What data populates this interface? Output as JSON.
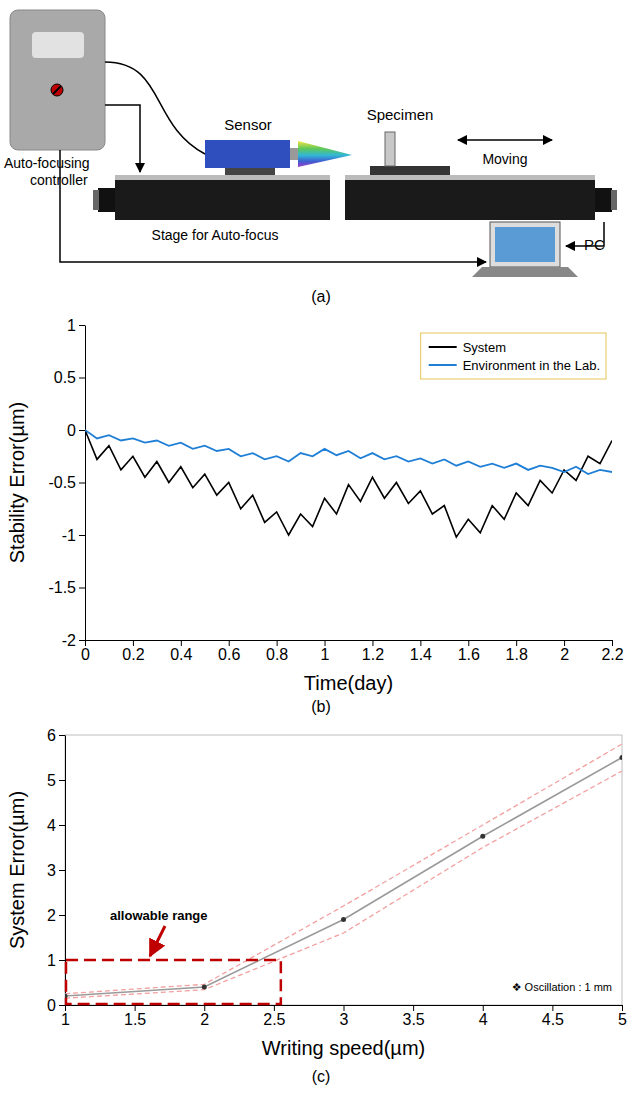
{
  "diagram": {
    "panel_label": "(a)",
    "controller": "Auto-focusing controller",
    "sensor": "Sensor",
    "specimen": "Specimen",
    "moving": "Moving",
    "stage": "Stage for Auto-focus",
    "pc": "PC"
  },
  "chart_data": [
    {
      "type": "line",
      "panel_label": "(b)",
      "x_label": "Time(day)",
      "y_label": "Stability Error(µm)",
      "x": [
        0,
        0.05,
        0.1,
        0.15,
        0.2,
        0.25,
        0.3,
        0.35,
        0.4,
        0.45,
        0.5,
        0.55,
        0.6,
        0.65,
        0.7,
        0.75,
        0.8,
        0.85,
        0.9,
        0.95,
        1,
        1.05,
        1.1,
        1.15,
        1.2,
        1.25,
        1.3,
        1.35,
        1.4,
        1.45,
        1.5,
        1.55,
        1.6,
        1.65,
        1.7,
        1.75,
        1.8,
        1.85,
        1.9,
        1.95,
        2,
        2.05,
        2.1,
        2.15,
        2.2
      ],
      "xlim": [
        0,
        2.2
      ],
      "xticks": [
        0,
        0.2,
        0.4,
        0.6,
        0.8,
        1,
        1.2,
        1.4,
        1.6,
        1.8,
        2,
        2.2
      ],
      "ylim": [
        -2,
        1
      ],
      "yticks": [
        -2,
        -1.5,
        -1,
        -0.5,
        0,
        0.5,
        1
      ],
      "grid": false,
      "legend": "upper right",
      "series": [
        {
          "name": "System",
          "color": "#000000",
          "values": [
            0,
            -0.28,
            -0.15,
            -0.38,
            -0.25,
            -0.45,
            -0.3,
            -0.5,
            -0.35,
            -0.55,
            -0.42,
            -0.62,
            -0.5,
            -0.75,
            -0.62,
            -0.88,
            -0.78,
            -1.0,
            -0.8,
            -0.92,
            -0.65,
            -0.8,
            -0.52,
            -0.68,
            -0.45,
            -0.65,
            -0.5,
            -0.7,
            -0.58,
            -0.8,
            -0.72,
            -1.02,
            -0.85,
            -0.98,
            -0.72,
            -0.85,
            -0.6,
            -0.72,
            -0.48,
            -0.6,
            -0.38,
            -0.48,
            -0.25,
            -0.32,
            -0.1
          ]
        },
        {
          "name": "Environment in the Lab.",
          "color": "#1f7fd6",
          "values": [
            0,
            -0.08,
            -0.05,
            -0.1,
            -0.08,
            -0.12,
            -0.1,
            -0.15,
            -0.12,
            -0.18,
            -0.15,
            -0.2,
            -0.18,
            -0.25,
            -0.22,
            -0.28,
            -0.25,
            -0.3,
            -0.22,
            -0.25,
            -0.18,
            -0.24,
            -0.2,
            -0.27,
            -0.22,
            -0.28,
            -0.25,
            -0.3,
            -0.27,
            -0.32,
            -0.28,
            -0.34,
            -0.3,
            -0.35,
            -0.32,
            -0.36,
            -0.32,
            -0.38,
            -0.34,
            -0.36,
            -0.4,
            -0.35,
            -0.42,
            -0.38,
            -0.4
          ]
        }
      ]
    },
    {
      "type": "line",
      "panel_label": "(c)",
      "x_label": "Writing speed(µm)",
      "y_label": "System Error(µm)",
      "x": [
        1,
        2,
        3,
        4,
        5
      ],
      "values": [
        0.2,
        0.4,
        1.9,
        3.75,
        5.5
      ],
      "error": [
        0.05,
        0.06,
        0.3,
        0.25,
        0.3
      ],
      "color": "#9a9a9a",
      "marker": "circle",
      "xlim": [
        1,
        5
      ],
      "xticks": [
        1,
        1.5,
        2,
        2.5,
        3,
        3.5,
        4,
        4.5,
        5
      ],
      "ylim": [
        0,
        6
      ],
      "yticks": [
        0,
        1,
        2,
        3,
        4,
        5,
        6
      ],
      "grid": false,
      "annotations": [
        {
          "text": "allowable range",
          "x": [
            1,
            2.55
          ],
          "y": [
            0,
            1
          ]
        },
        {
          "text": "❖  Oscillation : 1 mm"
        }
      ]
    }
  ]
}
